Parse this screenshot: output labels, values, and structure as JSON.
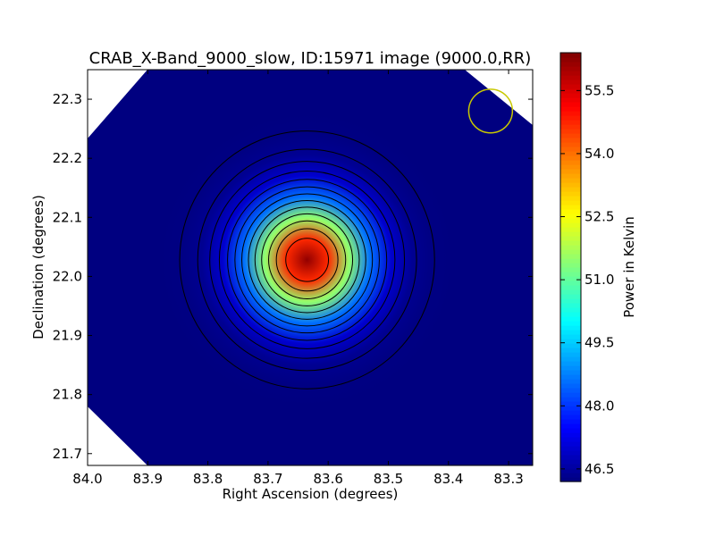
{
  "chart_data": {
    "type": "heatmap",
    "title": "CRAB_X-Band_9000_slow, ID:15971 image (9000.0,RR)",
    "xlabel": "Right Ascension (degrees)",
    "ylabel": "Declination (degrees)",
    "xlim": [
      84.0,
      83.26
    ],
    "ylim": [
      21.68,
      22.35
    ],
    "xticks": [
      84.0,
      83.9,
      83.8,
      83.7,
      83.6,
      83.5,
      83.4,
      83.3
    ],
    "xtick_labels": [
      "84.0",
      "83.9",
      "83.8",
      "83.7",
      "83.6",
      "83.5",
      "83.4",
      "83.3"
    ],
    "yticks": [
      21.7,
      21.8,
      21.9,
      22.0,
      22.1,
      22.2,
      22.3
    ],
    "ytick_labels": [
      "21.7",
      "21.8",
      "21.9",
      "22.0",
      "22.1",
      "22.2",
      "22.3"
    ],
    "colorbar": {
      "label": "Power in Kelvin",
      "range": [
        46.2,
        56.4
      ],
      "ticks": [
        46.5,
        48.0,
        49.5,
        51.0,
        52.5,
        54.0,
        55.5
      ],
      "tick_labels": [
        "46.5",
        "48.0",
        "49.5",
        "51.0",
        "52.5",
        "54.0",
        "55.5"
      ],
      "colormap": "jet"
    },
    "source": {
      "ra": 83.635,
      "dec": 22.028,
      "peak": 56.2,
      "background": 46.2
    },
    "contours": {
      "count": 13,
      "color": "#000000"
    },
    "beam": {
      "ra": 83.33,
      "dec": 22.28,
      "radius_deg": 0.037,
      "color": "#c8c800"
    },
    "grid": false,
    "legend": "none"
  }
}
